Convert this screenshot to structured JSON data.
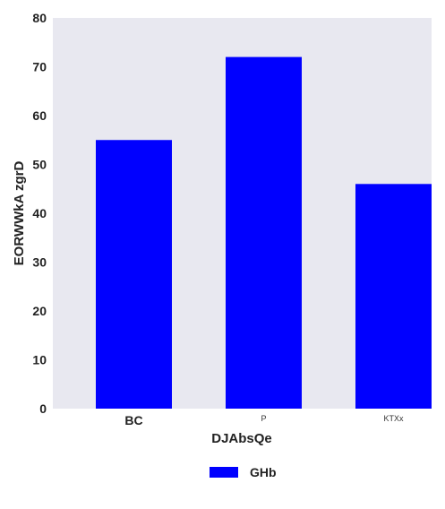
{
  "chart_data": {
    "type": "bar",
    "categories": [
      "BC",
      "P",
      "KTXx"
    ],
    "series": [
      {
        "name": "GHb",
        "values": [
          55,
          72,
          46
        ],
        "color": "#0000ff"
      }
    ],
    "xlabel": "DJAbsQe",
    "ylabel": "EORWWkA zgrD",
    "ylim": [
      0,
      80
    ],
    "yticks": [
      0,
      10,
      20,
      30,
      40,
      50,
      60,
      70,
      80
    ],
    "grid": false,
    "background": "#e8e8f0",
    "legend": "bottom-center"
  }
}
